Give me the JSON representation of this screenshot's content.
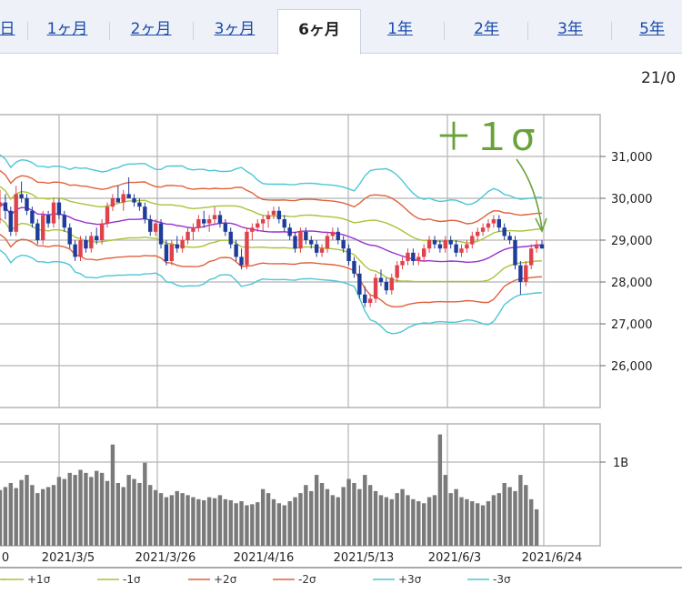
{
  "tabs": [
    {
      "label": "日",
      "active": false
    },
    {
      "label": "1ヶ月",
      "active": false
    },
    {
      "label": "2ヶ月",
      "active": false
    },
    {
      "label": "3ヶ月",
      "active": false
    },
    {
      "label": "6ヶ月",
      "active": true
    },
    {
      "label": "1年",
      "active": false
    },
    {
      "label": "2年",
      "active": false
    },
    {
      "label": "3年",
      "active": false
    },
    {
      "label": "5年",
      "active": false
    }
  ],
  "date_label": "21/0",
  "annotation": "＋１σ",
  "colors": {
    "up": "#e0424b",
    "down": "#1f3c9a",
    "ma": "#9b30d0",
    "sigma1": "#a7c43a",
    "sigma2": "#e0623c",
    "sigma3": "#4cc6d6",
    "volume": "#7a7a7a",
    "annotation": "#6aa23a",
    "grid": "#b5b5b5"
  },
  "chart_data": {
    "type": "candlestick",
    "ylim": [
      25000,
      32000
    ],
    "y_ticks": [
      "31,000",
      "30,000",
      "29,000",
      "28,000",
      "27,000",
      "26,000"
    ],
    "y_tick_values": [
      31000,
      30000,
      29000,
      28000,
      27000,
      26000
    ],
    "volume_tick": "1B",
    "x_labels": [
      "0",
      "2021/3/5",
      "2021/3/26",
      "2021/4/16",
      "2021/5/13",
      "2021/6/3",
      "2021/6/24"
    ],
    "legend": [
      "+1σ",
      "-1σ",
      "+2σ",
      "-2σ",
      "+3σ",
      "-3σ"
    ],
    "candles": [
      [
        29800,
        30200,
        29400,
        29900
      ],
      [
        29900,
        30100,
        29500,
        29700
      ],
      [
        29700,
        29800,
        29100,
        29200
      ],
      [
        29200,
        30300,
        29100,
        30100
      ],
      [
        30100,
        30400,
        29900,
        30000
      ],
      [
        30000,
        30100,
        29600,
        29700
      ],
      [
        29700,
        29800,
        29300,
        29400
      ],
      [
        29400,
        29500,
        28900,
        29000
      ],
      [
        29000,
        29700,
        28900,
        29600
      ],
      [
        29600,
        29700,
        29300,
        29400
      ],
      [
        29400,
        30000,
        29300,
        29900
      ],
      [
        29900,
        30000,
        29500,
        29600
      ],
      [
        29600,
        29700,
        29200,
        29300
      ],
      [
        29300,
        29400,
        28800,
        28900
      ],
      [
        28900,
        29000,
        28500,
        28600
      ],
      [
        28600,
        29100,
        28500,
        29000
      ],
      [
        29000,
        29100,
        28700,
        28800
      ],
      [
        28800,
        29200,
        28700,
        29100
      ],
      [
        29100,
        29300,
        28900,
        29000
      ],
      [
        29000,
        29500,
        28900,
        29400
      ],
      [
        29400,
        29900,
        29300,
        29800
      ],
      [
        29800,
        30100,
        29700,
        30000
      ],
      [
        30000,
        30300,
        29900,
        29900
      ],
      [
        29900,
        30200,
        29700,
        30100
      ],
      [
        30100,
        30500,
        30000,
        30000
      ],
      [
        30000,
        30100,
        29800,
        29900
      ],
      [
        29900,
        30000,
        29700,
        29800
      ],
      [
        29800,
        29900,
        29400,
        29500
      ],
      [
        29500,
        29600,
        29100,
        29200
      ],
      [
        29200,
        29500,
        29100,
        29400
      ],
      [
        29400,
        29500,
        28800,
        28900
      ],
      [
        28900,
        29000,
        28400,
        28500
      ],
      [
        28500,
        29000,
        28400,
        28900
      ],
      [
        28900,
        29100,
        28700,
        28800
      ],
      [
        28800,
        29100,
        28700,
        29000
      ],
      [
        29000,
        29300,
        28900,
        29200
      ],
      [
        29200,
        29400,
        29000,
        29300
      ],
      [
        29300,
        29600,
        29200,
        29500
      ],
      [
        29500,
        29700,
        29300,
        29400
      ],
      [
        29400,
        29600,
        29200,
        29500
      ],
      [
        29500,
        29800,
        29400,
        29600
      ],
      [
        29600,
        29700,
        29300,
        29400
      ],
      [
        29400,
        29500,
        29100,
        29200
      ],
      [
        29200,
        29300,
        28800,
        28900
      ],
      [
        28900,
        29000,
        28500,
        28600
      ],
      [
        28600,
        28800,
        28300,
        28400
      ],
      [
        28400,
        29300,
        28300,
        29200
      ],
      [
        29200,
        29400,
        29000,
        29300
      ],
      [
        29300,
        29500,
        29200,
        29400
      ],
      [
        29400,
        29600,
        29200,
        29500
      ],
      [
        29500,
        29700,
        29300,
        29600
      ],
      [
        29600,
        29800,
        29500,
        29700
      ],
      [
        29700,
        29800,
        29400,
        29500
      ],
      [
        29500,
        29600,
        29200,
        29300
      ],
      [
        29300,
        29400,
        29000,
        29100
      ],
      [
        29100,
        29200,
        28700,
        28800
      ],
      [
        28800,
        29300,
        28700,
        29200
      ],
      [
        29200,
        29300,
        28900,
        29000
      ],
      [
        29000,
        29100,
        28800,
        28900
      ],
      [
        28900,
        29000,
        28600,
        28700
      ],
      [
        28700,
        28900,
        28600,
        28800
      ],
      [
        28800,
        29200,
        28700,
        29100
      ],
      [
        29100,
        29300,
        29000,
        29200
      ],
      [
        29200,
        29300,
        28900,
        29000
      ],
      [
        29000,
        29100,
        28700,
        28800
      ],
      [
        28800,
        28900,
        28400,
        28500
      ],
      [
        28500,
        28600,
        28100,
        28200
      ],
      [
        28200,
        28400,
        27600,
        27700
      ],
      [
        27700,
        27900,
        27400,
        27500
      ],
      [
        27500,
        27700,
        27400,
        27600
      ],
      [
        27600,
        28200,
        27500,
        28100
      ],
      [
        28100,
        28300,
        27900,
        28000
      ],
      [
        28000,
        28100,
        27700,
        27800
      ],
      [
        27800,
        28200,
        27700,
        28100
      ],
      [
        28100,
        28500,
        28000,
        28400
      ],
      [
        28400,
        28600,
        28300,
        28500
      ],
      [
        28500,
        28800,
        28400,
        28700
      ],
      [
        28700,
        28800,
        28400,
        28500
      ],
      [
        28500,
        28700,
        28400,
        28600
      ],
      [
        28600,
        28900,
        28500,
        28800
      ],
      [
        28800,
        29100,
        28700,
        29000
      ],
      [
        29000,
        29100,
        28800,
        28900
      ],
      [
        28900,
        29000,
        28700,
        28800
      ],
      [
        28800,
        29100,
        28700,
        29000
      ],
      [
        29000,
        29100,
        28800,
        28900
      ],
      [
        28900,
        29000,
        28600,
        28700
      ],
      [
        28700,
        28900,
        28600,
        28800
      ],
      [
        28800,
        29000,
        28700,
        28900
      ],
      [
        28900,
        29200,
        28800,
        29100
      ],
      [
        29100,
        29300,
        29000,
        29200
      ],
      [
        29200,
        29400,
        29100,
        29300
      ],
      [
        29300,
        29500,
        29200,
        29400
      ],
      [
        29400,
        29600,
        29300,
        29500
      ],
      [
        29500,
        29600,
        29200,
        29300
      ],
      [
        29300,
        29400,
        29000,
        29100
      ],
      [
        29100,
        29200,
        28900,
        29000
      ],
      [
        29000,
        29100,
        28300,
        28400
      ],
      [
        28400,
        28500,
        27700,
        28000
      ],
      [
        28000,
        28500,
        27900,
        28400
      ],
      [
        28400,
        28900,
        28300,
        28800
      ],
      [
        28800,
        29000,
        28700,
        28900
      ],
      [
        28900,
        29000,
        28800,
        28800
      ]
    ],
    "volume": [
      0.55,
      0.58,
      0.62,
      0.57,
      0.65,
      0.7,
      0.6,
      0.52,
      0.56,
      0.58,
      0.6,
      0.68,
      0.66,
      0.72,
      0.7,
      0.75,
      0.72,
      0.68,
      0.74,
      0.72,
      0.64,
      1.0,
      0.62,
      0.58,
      0.7,
      0.66,
      0.62,
      0.82,
      0.6,
      0.55,
      0.52,
      0.48,
      0.5,
      0.54,
      0.52,
      0.5,
      0.48,
      0.46,
      0.45,
      0.48,
      0.47,
      0.5,
      0.46,
      0.45,
      0.42,
      0.44,
      0.4,
      0.41,
      0.43,
      0.56,
      0.52,
      0.46,
      0.42,
      0.4,
      0.44,
      0.48,
      0.52,
      0.6,
      0.54,
      0.7,
      0.62,
      0.56,
      0.5,
      0.48,
      0.58,
      0.66,
      0.62,
      0.56,
      0.7,
      0.6,
      0.54,
      0.5,
      0.48,
      0.46,
      0.52,
      0.56,
      0.5,
      0.46,
      0.44,
      0.42,
      0.48,
      0.5,
      1.1,
      0.7,
      0.52,
      0.56,
      0.48,
      0.46,
      0.44,
      0.42,
      0.4,
      0.44,
      0.5,
      0.52,
      0.62,
      0.58,
      0.54,
      0.7,
      0.6,
      0.46,
      0.36
    ]
  }
}
